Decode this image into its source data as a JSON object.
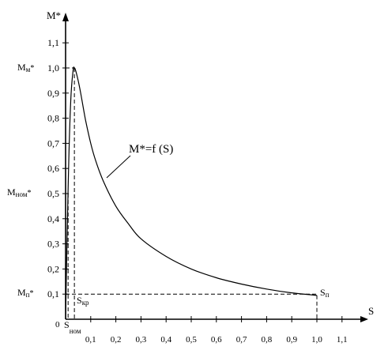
{
  "chart_data": {
    "type": "line",
    "title": "",
    "xlabel": "S",
    "ylabel": "M*",
    "xlim": [
      0,
      1.15
    ],
    "ylim": [
      0,
      1.18
    ],
    "x_ticks": [
      {
        "value": 0.1,
        "label": "0,1"
      },
      {
        "value": 0.2,
        "label": "0,2"
      },
      {
        "value": 0.3,
        "label": "0,3"
      },
      {
        "value": 0.4,
        "label": "0,4"
      },
      {
        "value": 0.5,
        "label": "0,5"
      },
      {
        "value": 0.6,
        "label": "0,6"
      },
      {
        "value": 0.7,
        "label": "0,7"
      },
      {
        "value": 0.8,
        "label": "0,8"
      },
      {
        "value": 0.9,
        "label": "0,9"
      },
      {
        "value": 1.0,
        "label": "1,0"
      },
      {
        "value": 1.1,
        "label": "1,1"
      }
    ],
    "y_ticks": [
      {
        "value": 0.1,
        "label": "0,1"
      },
      {
        "value": 0.2,
        "label": "0,2"
      },
      {
        "value": 0.3,
        "label": "0,3"
      },
      {
        "value": 0.4,
        "label": "0,4"
      },
      {
        "value": 0.5,
        "label": "0,5"
      },
      {
        "value": 0.6,
        "label": "0,6"
      },
      {
        "value": 0.7,
        "label": "0,7"
      },
      {
        "value": 0.8,
        "label": "0,8"
      },
      {
        "value": 0.9,
        "label": "0,9"
      },
      {
        "value": 1.0,
        "label": "1,0"
      },
      {
        "value": 1.1,
        "label": "1,1"
      }
    ],
    "origin_label": "0",
    "series": [
      {
        "x": [
          0,
          0.01,
          0.02,
          0.03,
          0.035,
          0.04,
          0.05,
          0.06,
          0.08,
          0.1,
          0.12,
          0.15,
          0.2,
          0.25,
          0.3,
          0.4,
          0.5,
          0.6,
          0.7,
          0.8,
          0.9,
          1.0
        ],
        "y": [
          0,
          0.52,
          0.86,
          0.99,
          1.0,
          0.99,
          0.95,
          0.9,
          0.79,
          0.7,
          0.63,
          0.55,
          0.45,
          0.38,
          0.32,
          0.25,
          0.2,
          0.165,
          0.14,
          0.12,
          0.105,
          0.095
        ]
      }
    ],
    "reference_points": {
      "s_nom": 0.01,
      "s_kr": 0.035,
      "m_max": 1.0,
      "m_nom": 0.5,
      "m_start": 0.1
    },
    "annotations": {
      "m_max_main": "M",
      "m_max_sub": "м",
      "m_max_star": "*",
      "m_nom_main": "M",
      "m_nom_sub": "ном",
      "m_nom_star": "*",
      "m_start_main": "M",
      "m_start_sub": "п",
      "m_start_star": "*",
      "s_nom_main": "S",
      "s_nom_sub": "ном",
      "s_kr_main": "S",
      "s_kr_sub": "кр",
      "s_start_main": "S",
      "s_start_sub": "п",
      "curve_label": "M*=f (S)"
    },
    "grid": false,
    "legend": "none"
  }
}
